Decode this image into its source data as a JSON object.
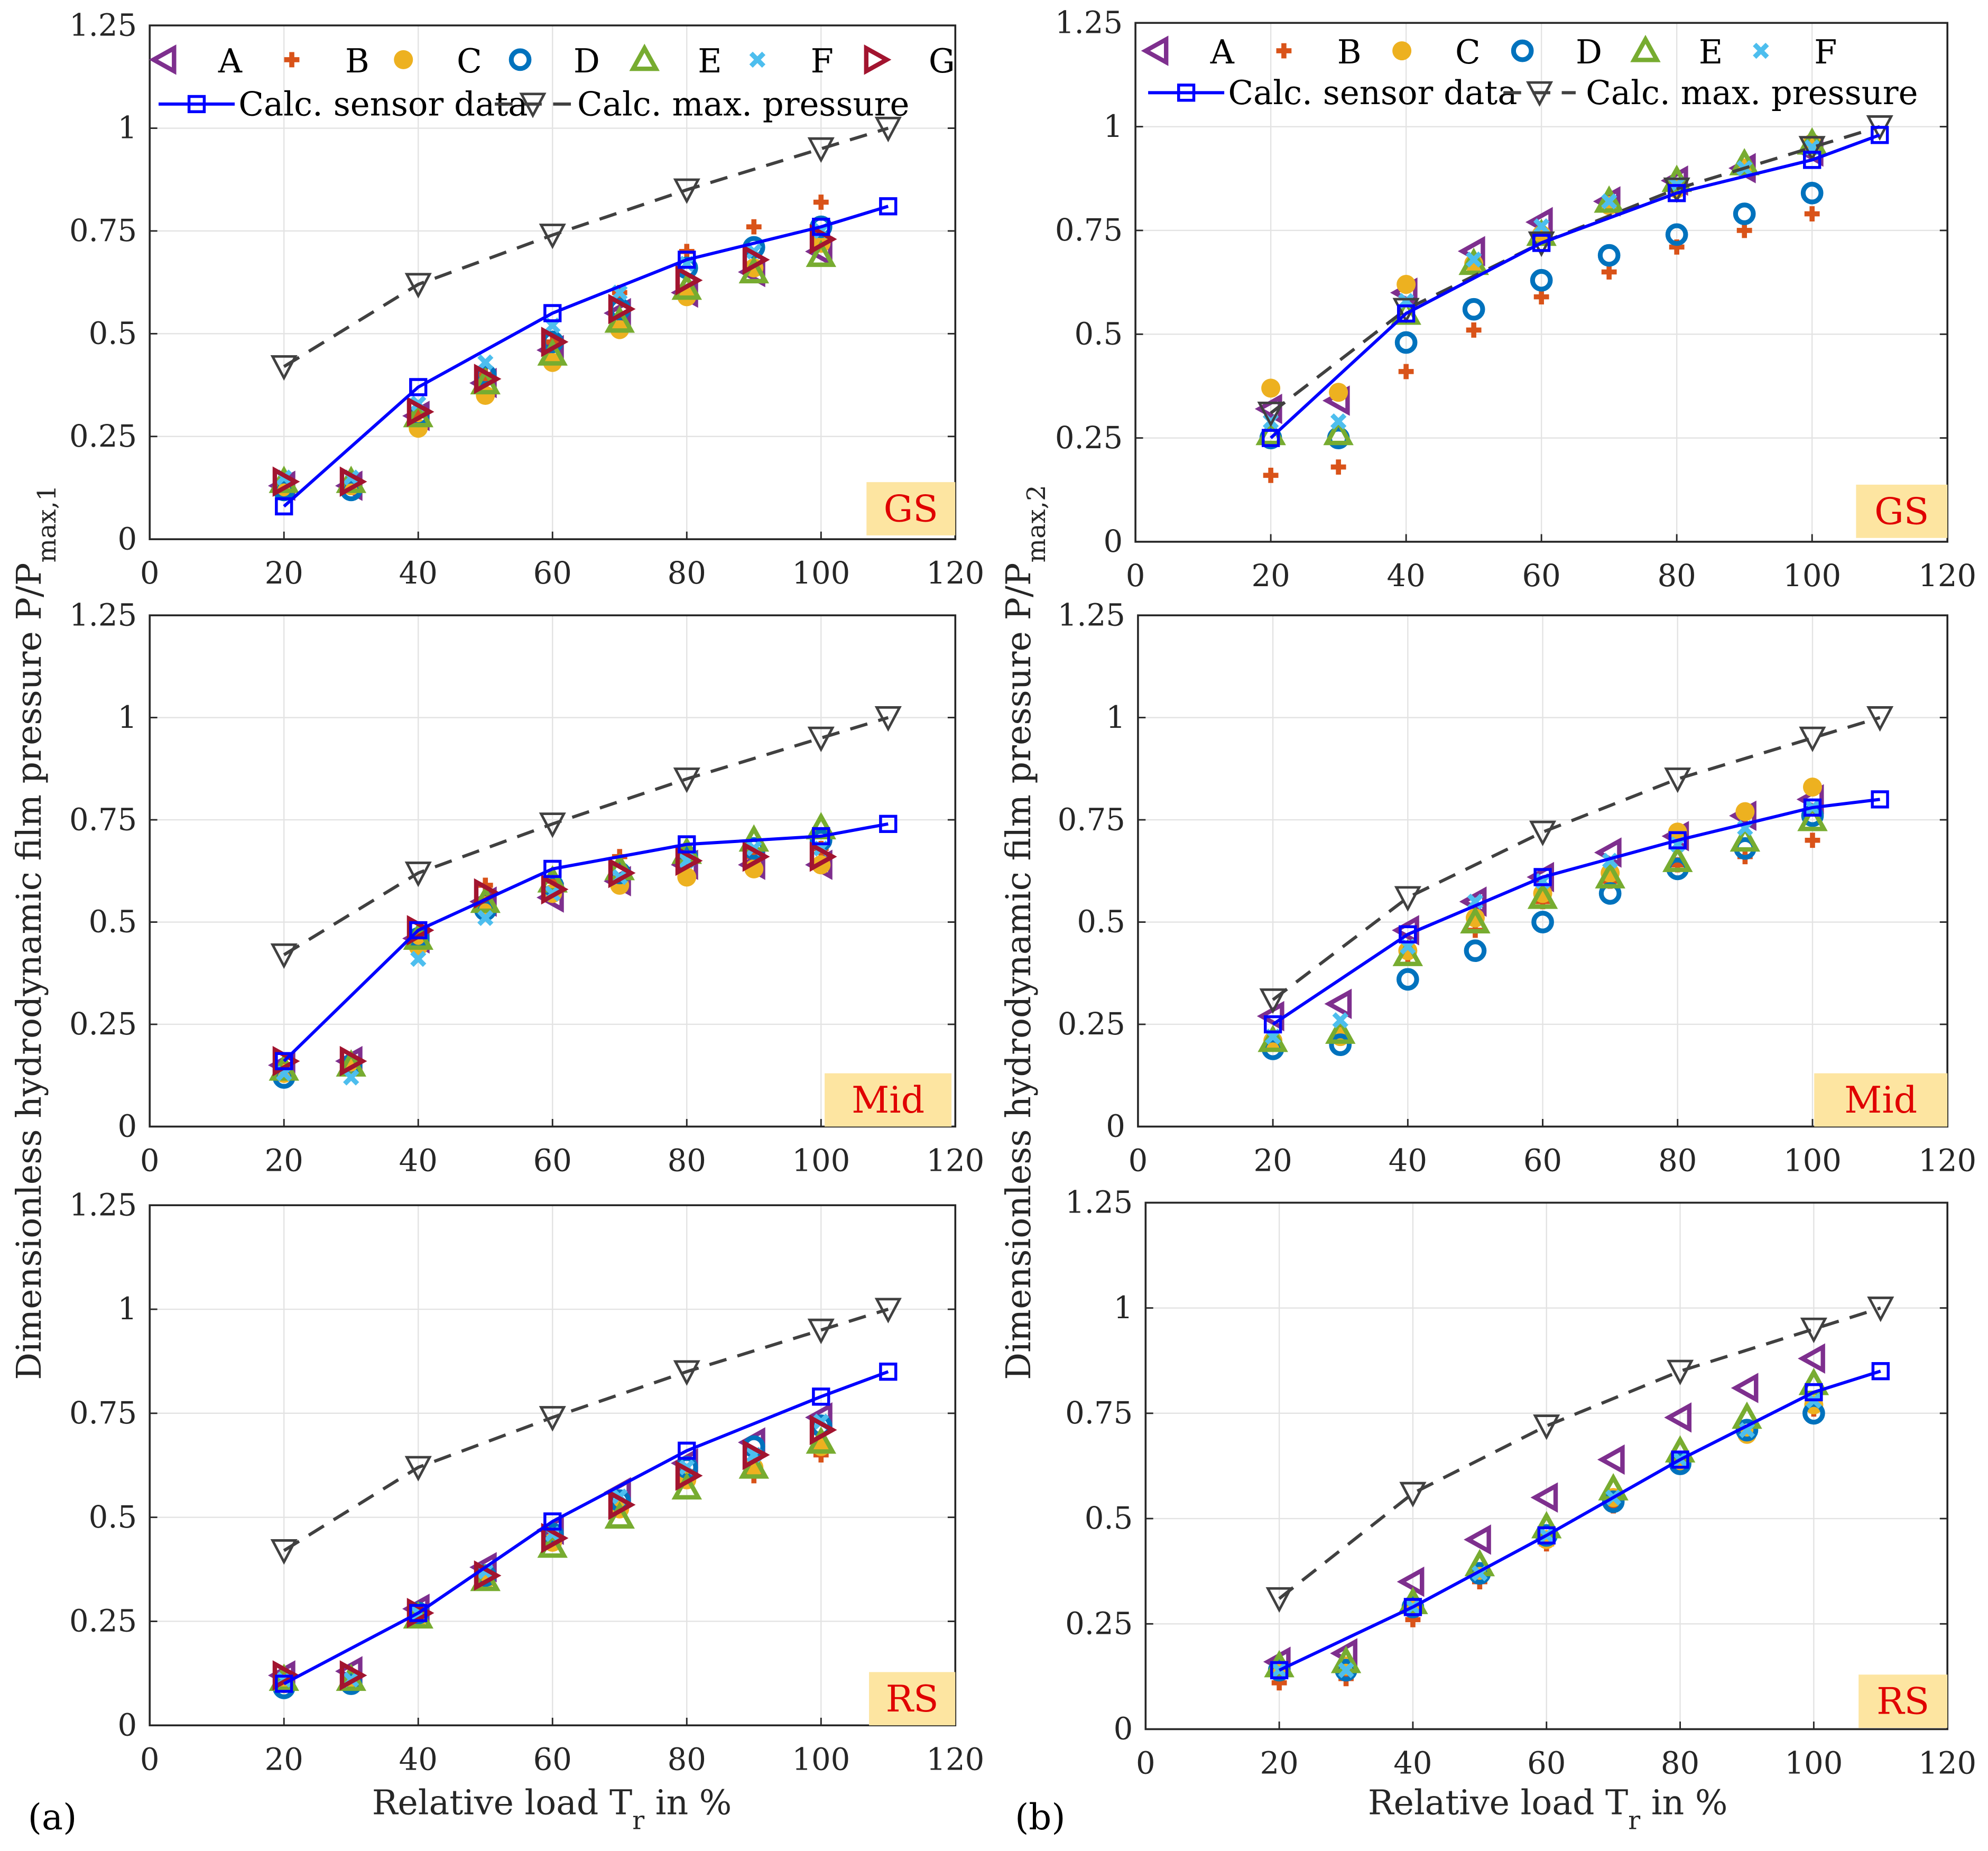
{
  "chart_data": {
    "type": "scatter",
    "x_ticks": [
      "0",
      "20",
      "40",
      "60",
      "80",
      "100",
      "120"
    ],
    "y_ticks": [
      "0",
      "0.25",
      "0.5",
      "0.75",
      "1",
      "1.25"
    ],
    "xlim": [
      0,
      120
    ],
    "ylim": [
      0,
      1.25
    ],
    "grid": true,
    "xlabel_main": "Relative load T",
    "xlabel_sub": "r",
    "xlabel_tail": " in %",
    "series_styles": {
      "A": {
        "color": "#7E2F8E",
        "marker": "triangle-left"
      },
      "B": {
        "color": "#D95319",
        "marker": "plus"
      },
      "C": {
        "color": "#EDB120",
        "marker": "filled-circle"
      },
      "D": {
        "color": "#0072BD",
        "marker": "circle"
      },
      "E": {
        "color": "#77AC30",
        "marker": "triangle-up"
      },
      "F": {
        "color": "#4DBEEE",
        "marker": "x"
      },
      "G": {
        "color": "#A2142F",
        "marker": "triangle-right"
      },
      "sensor": {
        "color": "#0000FF",
        "marker": "square",
        "line": "solid"
      },
      "max": {
        "color": "#404040",
        "marker": "triangle-down",
        "line": "dashed"
      }
    },
    "legend_sensor": "Calc. sensor data",
    "legend_max": "Calc. max. pressure",
    "x": [
      20,
      30,
      40,
      50,
      60,
      70,
      80,
      90,
      100
    ],
    "line_x": [
      20,
      40,
      60,
      80,
      100,
      110
    ],
    "columns": [
      {
        "label": "(a)",
        "ylabel_main": "Dimensionless hydrodynamic film pressure P/P",
        "ylabel_sub": "max,1",
        "legend": [
          "A",
          "B",
          "C",
          "D",
          "E",
          "F",
          "G"
        ]
      },
      {
        "label": "(b)",
        "ylabel_main": "Dimensionless hydrodynamic film pressure P/P",
        "ylabel_sub": "max,2",
        "legend": [
          "A",
          "B",
          "C",
          "D",
          "E",
          "F"
        ]
      }
    ],
    "panels": [
      {
        "column": "(a)",
        "region": "GS",
        "sensor": [
          0.08,
          0.37,
          0.55,
          0.68,
          0.76,
          0.81
        ],
        "max": [
          0.42,
          0.62,
          0.74,
          0.85,
          0.95,
          1.0
        ],
        "series": {
          "A": [
            0.13,
            0.13,
            0.3,
            0.38,
            0.46,
            0.55,
            0.6,
            0.65,
            0.7
          ],
          "B": [
            0.13,
            0.14,
            0.3,
            0.4,
            0.48,
            0.6,
            0.7,
            0.76,
            0.82
          ],
          "C": [
            0.12,
            0.13,
            0.27,
            0.35,
            0.43,
            0.51,
            0.59,
            0.66,
            0.72
          ],
          "D": [
            0.12,
            0.12,
            0.3,
            0.4,
            0.48,
            0.56,
            0.66,
            0.71,
            0.76
          ],
          "E": [
            0.14,
            0.14,
            0.3,
            0.38,
            0.45,
            0.53,
            0.61,
            0.65,
            0.69
          ],
          "F": [
            0.15,
            0.15,
            0.33,
            0.43,
            0.52,
            0.6,
            0.67,
            0.7,
            0.75
          ],
          "G": [
            0.14,
            0.14,
            0.31,
            0.39,
            0.48,
            0.56,
            0.63,
            0.68,
            0.73
          ]
        }
      },
      {
        "column": "(a)",
        "region": "Mid",
        "sensor": [
          0.16,
          0.48,
          0.63,
          0.69,
          0.71,
          0.74
        ],
        "max": [
          0.42,
          0.62,
          0.74,
          0.85,
          0.95,
          1.0
        ],
        "series": {
          "A": [
            0.15,
            0.16,
            0.46,
            0.55,
            0.56,
            0.6,
            0.64,
            0.64,
            0.64
          ],
          "B": [
            0.15,
            0.16,
            0.47,
            0.59,
            0.6,
            0.66,
            0.66,
            0.66,
            0.68
          ],
          "C": [
            0.13,
            0.15,
            0.44,
            0.54,
            0.57,
            0.59,
            0.61,
            0.63,
            0.64
          ],
          "D": [
            0.12,
            0.15,
            0.46,
            0.53,
            0.59,
            0.62,
            0.66,
            0.68,
            0.7
          ],
          "E": [
            0.14,
            0.15,
            0.46,
            0.55,
            0.6,
            0.63,
            0.67,
            0.7,
            0.73
          ],
          "F": [
            0.13,
            0.12,
            0.41,
            0.51,
            0.57,
            0.61,
            0.65,
            0.68,
            0.68
          ],
          "G": [
            0.16,
            0.16,
            0.48,
            0.57,
            0.58,
            0.62,
            0.65,
            0.66,
            0.66
          ]
        }
      },
      {
        "column": "(a)",
        "region": "RS",
        "sensor": [
          0.1,
          0.27,
          0.49,
          0.66,
          0.79,
          0.85
        ],
        "max": [
          0.42,
          0.62,
          0.74,
          0.85,
          0.95,
          1.0
        ],
        "series": {
          "A": [
            0.12,
            0.13,
            0.28,
            0.38,
            0.47,
            0.56,
            0.63,
            0.68,
            0.74
          ],
          "B": [
            0.11,
            0.11,
            0.27,
            0.35,
            0.45,
            0.52,
            0.61,
            0.6,
            0.65
          ],
          "C": [
            0.1,
            0.1,
            0.26,
            0.35,
            0.44,
            0.52,
            0.59,
            0.62,
            0.67
          ],
          "D": [
            0.09,
            0.1,
            0.27,
            0.36,
            0.46,
            0.54,
            0.62,
            0.67,
            0.72
          ],
          "E": [
            0.11,
            0.11,
            0.26,
            0.35,
            0.43,
            0.5,
            0.57,
            0.62,
            0.68
          ],
          "F": [
            0.11,
            0.11,
            0.27,
            0.37,
            0.46,
            0.55,
            0.62,
            0.65,
            0.73
          ],
          "G": [
            0.12,
            0.12,
            0.27,
            0.36,
            0.45,
            0.53,
            0.6,
            0.65,
            0.71
          ]
        }
      },
      {
        "column": "(b)",
        "region": "GS",
        "sensor": [
          0.25,
          0.55,
          0.72,
          0.84,
          0.92,
          0.98
        ],
        "max": [
          0.31,
          0.56,
          0.72,
          0.85,
          0.95,
          1.0
        ],
        "series": {
          "A": [
            0.32,
            0.34,
            0.6,
            0.7,
            0.77,
            0.82,
            0.87,
            0.9,
            0.94
          ],
          "B": [
            0.16,
            0.18,
            0.41,
            0.51,
            0.59,
            0.65,
            0.71,
            0.75,
            0.79
          ],
          "C": [
            0.37,
            0.36,
            0.62,
            0.67,
            0.74,
            0.81,
            0.85,
            0.9,
            0.96
          ],
          "D": [
            0.25,
            0.25,
            0.48,
            0.56,
            0.63,
            0.69,
            0.74,
            0.79,
            0.84
          ],
          "E": [
            0.26,
            0.26,
            0.55,
            0.67,
            0.74,
            0.82,
            0.87,
            0.91,
            0.96
          ],
          "F": [
            0.29,
            0.29,
            0.58,
            0.68,
            0.76,
            0.82,
            0.86,
            0.9,
            0.95
          ]
        }
      },
      {
        "column": "(b)",
        "region": "Mid",
        "sensor": [
          0.25,
          0.47,
          0.61,
          0.7,
          0.78,
          0.8
        ],
        "max": [
          0.31,
          0.56,
          0.72,
          0.85,
          0.95,
          1.0
        ],
        "series": {
          "A": [
            0.27,
            0.3,
            0.48,
            0.55,
            0.61,
            0.67,
            0.71,
            0.76,
            0.8
          ],
          "B": [
            0.21,
            0.23,
            0.42,
            0.48,
            0.55,
            0.6,
            0.64,
            0.66,
            0.7
          ],
          "C": [
            0.21,
            0.22,
            0.43,
            0.51,
            0.57,
            0.62,
            0.72,
            0.77,
            0.83
          ],
          "D": [
            0.19,
            0.2,
            0.36,
            0.43,
            0.5,
            0.57,
            0.63,
            0.68,
            0.76
          ],
          "E": [
            0.21,
            0.23,
            0.42,
            0.5,
            0.56,
            0.61,
            0.65,
            0.7,
            0.75
          ],
          "F": [
            0.22,
            0.26,
            0.44,
            0.55,
            0.6,
            0.65,
            0.69,
            0.73,
            0.78
          ]
        }
      },
      {
        "column": "(b)",
        "region": "RS",
        "sensor": [
          0.14,
          0.29,
          0.46,
          0.64,
          0.8,
          0.85
        ],
        "max": [
          0.31,
          0.56,
          0.72,
          0.85,
          0.95,
          1.0
        ],
        "series": {
          "A": [
            0.16,
            0.18,
            0.35,
            0.45,
            0.55,
            0.64,
            0.74,
            0.81,
            0.88
          ],
          "B": [
            0.11,
            0.12,
            0.26,
            0.35,
            0.44,
            0.53,
            0.63,
            0.7,
            0.76
          ],
          "C": [
            0.14,
            0.15,
            0.29,
            0.37,
            0.45,
            0.55,
            0.63,
            0.7,
            0.77
          ],
          "D": [
            0.14,
            0.14,
            0.29,
            0.37,
            0.46,
            0.54,
            0.63,
            0.71,
            0.75
          ],
          "E": [
            0.15,
            0.16,
            0.3,
            0.39,
            0.48,
            0.57,
            0.66,
            0.74,
            0.82
          ],
          "F": [
            0.14,
            0.14,
            0.29,
            0.37,
            0.46,
            0.55,
            0.64,
            0.71,
            0.78
          ]
        }
      }
    ]
  }
}
